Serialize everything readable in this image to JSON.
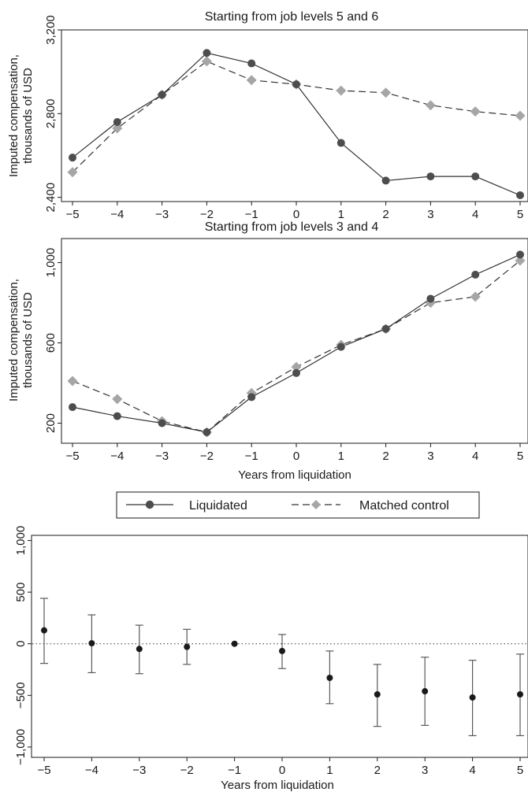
{
  "colors": {
    "liquidated": "#4d4d4d",
    "matched_control": "#a6a6a6",
    "errorbar": "#595959",
    "point": "#1a1a1a"
  },
  "legend": {
    "liquidated": "Liquidated",
    "matched_control": "Matched control"
  },
  "chart_data": [
    {
      "type": "line",
      "title": "Starting from job levels 5 and 6",
      "ylabel_line1": "Imputed compensation,",
      "ylabel_line2": "thousands of USD",
      "xlabel": "",
      "x": [
        -5,
        -4,
        -3,
        -2,
        -1,
        0,
        1,
        2,
        3,
        4,
        5
      ],
      "x_ticks": [
        "−5",
        "−4",
        "−3",
        "−2",
        "−1",
        "0",
        "1",
        "2",
        "3",
        "4",
        "5"
      ],
      "ylim": [
        2380,
        3200
      ],
      "y_ticks": [
        2400,
        2800,
        3200
      ],
      "y_tick_labels": [
        "2,400",
        "2,800",
        "3,200"
      ],
      "series": [
        {
          "name": "Liquidated",
          "values": [
            2590,
            2760,
            2890,
            3090,
            3040,
            2940,
            2660,
            2480,
            2500,
            2500,
            2410
          ]
        },
        {
          "name": "Matched control",
          "values": [
            2520,
            2730,
            2890,
            3050,
            2960,
            2940,
            2910,
            2900,
            2840,
            2810,
            2790
          ]
        }
      ]
    },
    {
      "type": "line",
      "title": "Starting from job levels 3 and 4",
      "ylabel_line1": "Imputed compensation,",
      "ylabel_line2": "thousands of USD",
      "xlabel": "Years from liquidation",
      "x": [
        -5,
        -4,
        -3,
        -2,
        -1,
        0,
        1,
        2,
        3,
        4,
        5
      ],
      "x_ticks": [
        "−5",
        "−4",
        "−3",
        "−2",
        "−1",
        "0",
        "1",
        "2",
        "3",
        "4",
        "5"
      ],
      "ylim": [
        100,
        1120
      ],
      "y_ticks": [
        200,
        600,
        1000
      ],
      "y_tick_labels": [
        "200",
        "600",
        "1,000"
      ],
      "series": [
        {
          "name": "Liquidated",
          "values": [
            280,
            235,
            200,
            155,
            330,
            450,
            580,
            670,
            820,
            940,
            1040
          ]
        },
        {
          "name": "Matched control",
          "values": [
            410,
            320,
            210,
            155,
            350,
            480,
            590,
            670,
            800,
            830,
            1010
          ]
        }
      ]
    },
    {
      "type": "scatter",
      "title": "",
      "xlabel": "Years from liquidation",
      "ylabel": "",
      "x": [
        -5,
        -4,
        -3,
        -2,
        -1,
        0,
        1,
        2,
        3,
        4,
        5
      ],
      "x_ticks": [
        "−5",
        "−4",
        "−3",
        "−2",
        "−1",
        "0",
        "1",
        "2",
        "3",
        "4",
        "5"
      ],
      "ylim": [
        -1100,
        1050
      ],
      "y_ticks": [
        -1000,
        -500,
        0,
        500,
        1000
      ],
      "y_tick_labels": [
        "−1,000",
        "−500",
        "0",
        "500",
        "1,000"
      ],
      "reference_line": 0,
      "estimates": [
        130,
        5,
        -50,
        -30,
        0,
        -70,
        -330,
        -490,
        -460,
        -520,
        -490
      ],
      "ci_low": [
        -190,
        -280,
        -290,
        -200,
        0,
        -240,
        -580,
        -800,
        -790,
        -890,
        -890
      ],
      "ci_high": [
        440,
        280,
        180,
        140,
        0,
        90,
        -70,
        -200,
        -130,
        -160,
        -100
      ]
    }
  ]
}
